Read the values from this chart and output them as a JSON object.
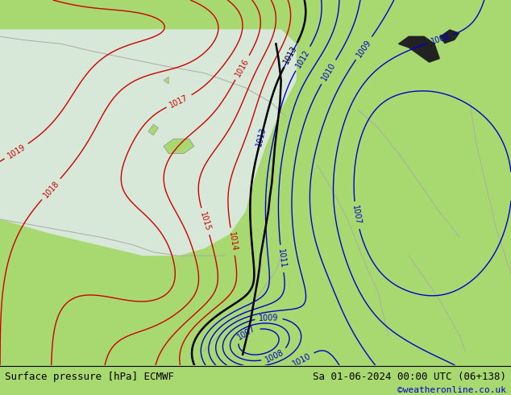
{
  "title_left": "Surface pressure [hPa] ECMWF",
  "title_right": "Sa 01-06-2024 00:00 UTC (06+138)",
  "credit": "©weatheronline.co.uk",
  "bg_color": "#a8d870",
  "sea_color": "#d8e8d8",
  "contour_color_red": "#cc0000",
  "contour_color_blue": "#0000cc",
  "contour_color_black": "#000000",
  "footer_bg": "#a8d870",
  "text_color_black": "#000000",
  "text_color_blue": "#0000cc",
  "figsize": [
    6.34,
    4.9
  ],
  "dpi": 100
}
